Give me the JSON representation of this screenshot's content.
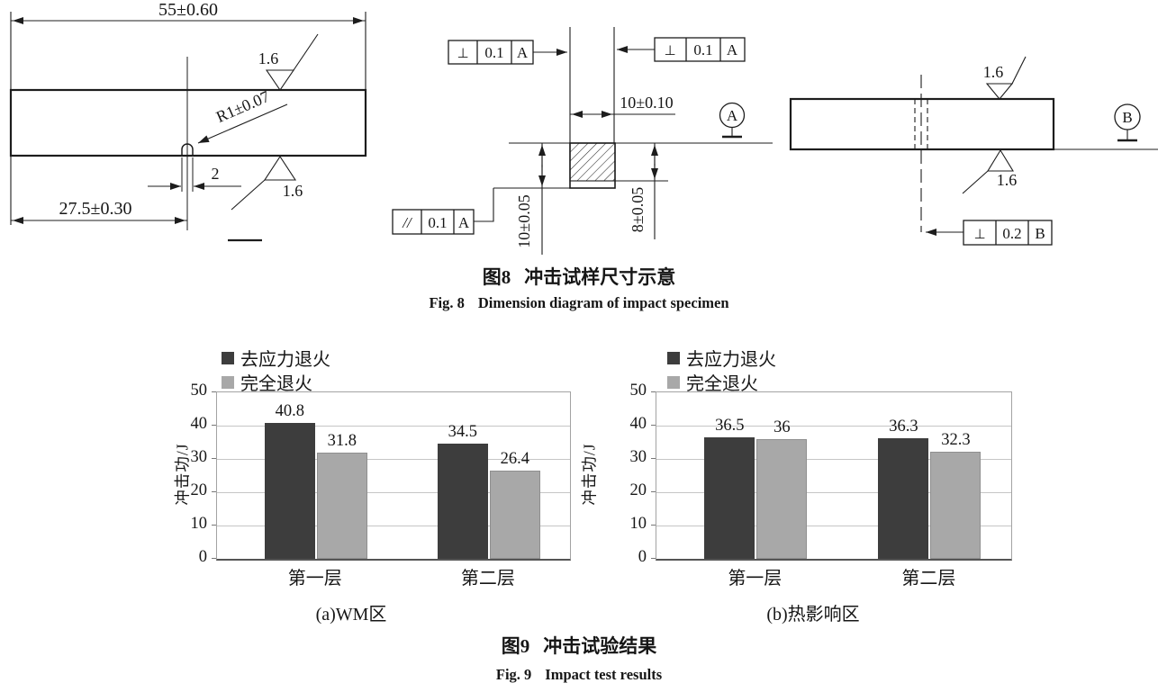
{
  "figure8": {
    "caption": {
      "zh_label": "图8",
      "zh_text": "冲击试样尺寸示意",
      "en_label": "Fig. 8",
      "en_text": "Dimension diagram of impact specimen"
    },
    "front_view": {
      "length": "55±0.60",
      "notch_offset": "27.5±0.30",
      "notch_width": "2",
      "notch_radius": "R1±0.07",
      "roughness_top": "1.6",
      "roughness_bottom": "1.6"
    },
    "section_view": {
      "width": "10±0.10",
      "height": "10±0.05",
      "notch_depth": "8±0.05",
      "perp_left": {
        "sym": "⊥",
        "val": "0.1",
        "datum": "A"
      },
      "perp_right": {
        "sym": "⊥",
        "val": "0.1",
        "datum": "A"
      },
      "parallel": {
        "sym": "//",
        "val": "0.1",
        "datum": "A"
      },
      "datum_label": "A"
    },
    "top_view": {
      "roughness_top": "1.6",
      "roughness_bottom": "1.6",
      "perp": {
        "sym": "⊥",
        "val": "0.2",
        "datum": "B"
      },
      "datum_label": "B"
    }
  },
  "figure9": {
    "caption": {
      "zh_label": "图9",
      "zh_text": "冲击试验结果",
      "en_label": "Fig. 9",
      "en_text": "Impact test results"
    }
  },
  "chart_data": [
    {
      "type": "bar",
      "title": "(a)WM区",
      "categories": [
        "第一层",
        "第二层"
      ],
      "series": [
        {
          "name": "去应力退火",
          "color": "#3d3d3d",
          "values": [
            40.8,
            34.5
          ]
        },
        {
          "name": "完全退火",
          "color": "#a8a8a8",
          "values": [
            31.8,
            26.4
          ]
        }
      ],
      "ylabel": "冲击功/J",
      "xlabel": "",
      "ylim": [
        0,
        50
      ],
      "yticks": [
        0,
        10,
        20,
        30,
        40,
        50
      ],
      "grid": true,
      "legend_position": "top-left"
    },
    {
      "type": "bar",
      "title": "(b)热影响区",
      "categories": [
        "第一层",
        "第二层"
      ],
      "series": [
        {
          "name": "去应力退火",
          "color": "#3d3d3d",
          "values": [
            36.5,
            36.3
          ]
        },
        {
          "name": "完全退火",
          "color": "#a8a8a8",
          "values": [
            36,
            32.3
          ]
        }
      ],
      "ylabel": "冲击功/J",
      "xlabel": "",
      "ylim": [
        0,
        50
      ],
      "yticks": [
        0,
        10,
        20,
        30,
        40,
        50
      ],
      "grid": true,
      "legend_position": "top-left"
    }
  ]
}
